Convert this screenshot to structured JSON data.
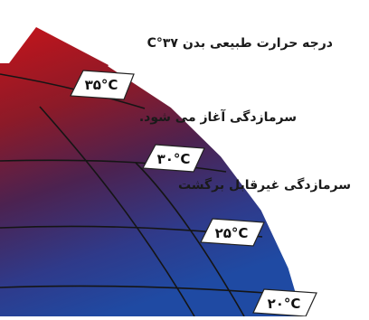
{
  "annotations": {
    "normal_body_temp": "درجه حرارت طبیعی بدن ۳۷°C",
    "hypothermia_begins": "سرمازدگی آغاز می شود.",
    "irreversible_hypothermia": "سرمازدگی غیرقابل برگشت"
  },
  "temperature_markers": [
    {
      "label": "۳۵°C"
    },
    {
      "label": "۳۰°C"
    },
    {
      "label": "۲۵°C"
    },
    {
      "label": "۲۰°C"
    }
  ],
  "colors": {
    "top_band": "#c4141b",
    "band_2": "#9c1a22",
    "band_3": "#5c2040",
    "band_4": "#3d2a70",
    "band_5": "#273e94",
    "marker_fill": "#ffffff",
    "gridline": "#151515"
  }
}
